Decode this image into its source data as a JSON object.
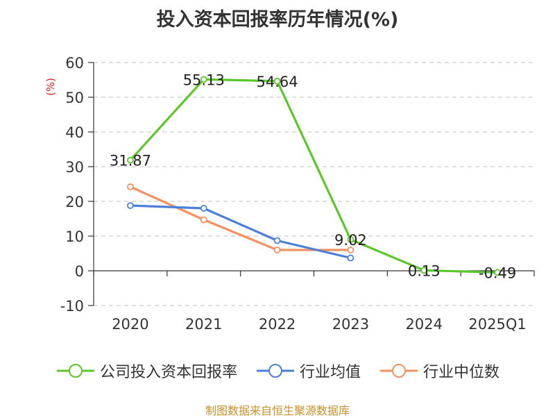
{
  "title": "投入资本回报率历年情况(%)",
  "source": "制图数据来自恒生聚源数据库",
  "chart_data": {
    "type": "line",
    "categories": [
      "2020",
      "2021",
      "2022",
      "2023",
      "2024",
      "2025Q1"
    ],
    "ylim": [
      -10,
      60
    ],
    "yticks": [
      -10,
      0,
      10,
      20,
      30,
      40,
      50,
      60
    ],
    "ylabel": "(%)",
    "ylabel_color": "#e02020",
    "grid": true,
    "legend_position": "bottom",
    "series": [
      {
        "name": "公司投入资本回报率",
        "color": "#5cc72a",
        "values": [
          31.87,
          55.13,
          54.64,
          9.02,
          0.13,
          -0.49
        ],
        "labels": [
          "31.87",
          "55.13",
          "54.64",
          "9.02",
          "0.13",
          "-0.49"
        ]
      },
      {
        "name": "行业均值",
        "color": "#4b7fd9",
        "values": [
          18.8,
          18.0,
          8.7,
          3.7,
          null,
          null
        ]
      },
      {
        "name": "行业中位数",
        "color": "#f59060",
        "values": [
          24.2,
          14.7,
          6.0,
          6.0,
          null,
          null
        ]
      }
    ]
  }
}
